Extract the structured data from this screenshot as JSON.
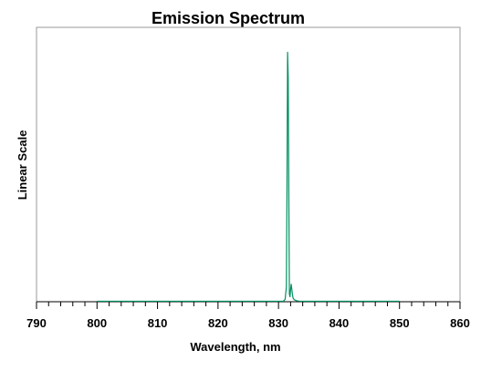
{
  "chart_data": {
    "type": "line",
    "title": "Emission Spectrum",
    "xlabel": "Wavelength, nm",
    "ylabel": "Linear Scale",
    "xlim": [
      790,
      860
    ],
    "ylim": [
      0,
      1.1
    ],
    "x_ticks": [
      "790",
      "800",
      "810",
      "820",
      "830",
      "840",
      "850",
      "860"
    ],
    "x_minor_step": 2,
    "y_tick_labels_shown": false,
    "grid": false,
    "legend": "none",
    "series": [
      {
        "color": "#009060",
        "x": [
          800,
          830.8,
          831.1,
          831.3,
          831.4,
          831.5,
          831.6,
          831.7,
          831.8,
          831.9,
          832.0,
          832.1,
          832.2,
          832.3,
          832.4,
          832.6,
          833.0,
          833.5,
          850
        ],
        "y": [
          0.002,
          0.002,
          0.01,
          0.06,
          0.45,
          1.0,
          0.9,
          0.45,
          0.03,
          0.02,
          0.05,
          0.07,
          0.05,
          0.03,
          0.015,
          0.008,
          0.004,
          0.002,
          0.002
        ]
      }
    ]
  }
}
